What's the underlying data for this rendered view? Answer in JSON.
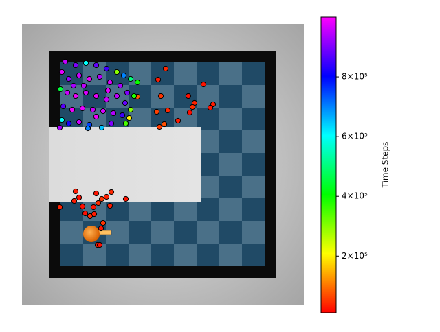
{
  "chart_data": {
    "type": "scatter",
    "colorbar_label": "Time Steps",
    "xlim": [
      0,
      410
    ],
    "ylim": [
      0,
      410
    ],
    "clim": [
      10000,
      1000000
    ],
    "cticks": [
      {
        "value": 200000,
        "label": "2×10⁵"
      },
      {
        "value": 400000,
        "label": "4×10⁵"
      },
      {
        "value": 600000,
        "label": "6×10⁵"
      },
      {
        "value": 800000,
        "label": "8×10⁵"
      }
    ],
    "x": [
      209,
      198,
      264,
      202,
      242,
      251,
      278,
      248,
      274,
      196,
      212,
      244,
      227,
      207,
      200,
      168,
      78,
      108,
      130,
      83,
      123,
      116,
      76,
      151,
      88,
      111,
      128,
      55,
      104,
      92,
      99,
      105,
      118,
      115,
      110,
      113,
      63,
      78,
      93,
      108,
      123,
      138,
      148,
      158,
      168,
      58,
      68,
      83,
      98,
      113,
      128,
      143,
      153,
      163,
      56,
      66,
      78,
      93,
      108,
      123,
      138,
      150,
      158,
      60,
      73,
      88,
      103,
      118,
      133,
      146,
      156,
      58,
      68,
      83,
      98,
      116,
      130,
      151,
      55,
      96,
      108,
      90,
      125,
      75
    ],
    "y": [
      345,
      329,
      322,
      305,
      305,
      295,
      293,
      289,
      288,
      282,
      284,
      281,
      269,
      264,
      260,
      304,
      166,
      163,
      165,
      157,
      158,
      155,
      152,
      155,
      144,
      149,
      145,
      143,
      143,
      134,
      130,
      133,
      120,
      112,
      88,
      88,
      355,
      350,
      353,
      350,
      345,
      340,
      335,
      330,
      325,
      340,
      330,
      335,
      330,
      333,
      325,
      320,
      310,
      305,
      315,
      310,
      305,
      310,
      305,
      300,
      305,
      295,
      285,
      290,
      285,
      287,
      285,
      283,
      280,
      277,
      273,
      270,
      265,
      267,
      263,
      259,
      265,
      265,
      259,
      258,
      275,
      320,
      313,
      320
    ],
    "color_values": [
      40000,
      30000,
      25000,
      50000,
      20000,
      35000,
      30000,
      45000,
      25000,
      60000,
      40000,
      20000,
      30000,
      70000,
      55000,
      80000,
      30000,
      25000,
      40000,
      20000,
      35000,
      50000,
      30000,
      25000,
      20000,
      45000,
      30000,
      35000,
      25000,
      20000,
      40000,
      30000,
      50000,
      25000,
      30000,
      20000,
      950000,
      900000,
      600000,
      880000,
      850000,
      300000,
      700000,
      500000,
      400000,
      980000,
      920000,
      960000,
      990000,
      940000,
      970000,
      930000,
      900000,
      380000,
      450000,
      960000,
      990000,
      970000,
      980000,
      960000,
      950000,
      880000,
      300000,
      870000,
      990000,
      980000,
      960000,
      970000,
      940000,
      850000,
      200000,
      600000,
      820000,
      960000,
      750000,
      650000,
      900000,
      350000,
      930000,
      700000,
      990000,
      950000,
      980000,
      930000
    ]
  }
}
